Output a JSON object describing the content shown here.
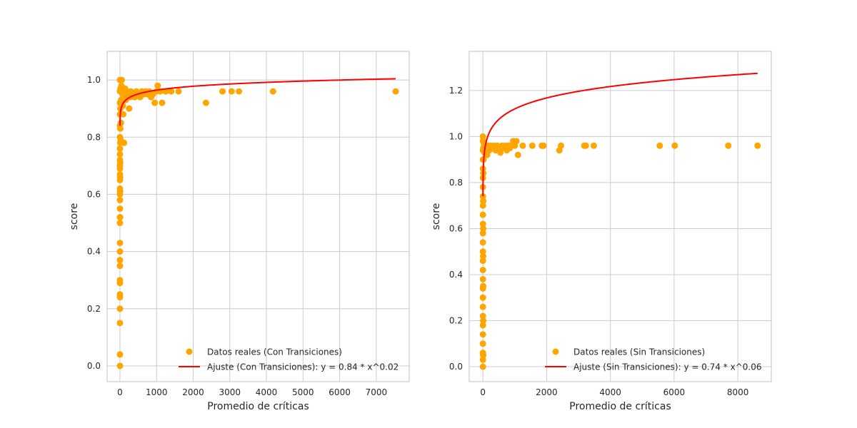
{
  "chart_data": [
    {
      "type": "scatter",
      "xlabel": "Promedio de críticas",
      "ylabel": "score",
      "xlim": [
        -350,
        7900
      ],
      "ylim": [
        -0.055,
        1.1
      ],
      "xticks": [
        0,
        1000,
        2000,
        3000,
        4000,
        5000,
        6000,
        7000
      ],
      "yticks": [
        0.0,
        0.2,
        0.4,
        0.6,
        0.8,
        1.0
      ],
      "ytick_labels": [
        "0.0",
        "0.2",
        "0.4",
        "0.6",
        "0.8",
        "1.0"
      ],
      "grid": true,
      "legend_position": "lower-right",
      "series": [
        {
          "name": "Datos reales (Con Transiciones)",
          "kind": "scatter",
          "color": "#FFA500",
          "points": [
            [
              0,
              0.0
            ],
            [
              0,
              0.04
            ],
            [
              0,
              0.15
            ],
            [
              0,
              0.2
            ],
            [
              0,
              0.24
            ],
            [
              0,
              0.25
            ],
            [
              0,
              0.29
            ],
            [
              0,
              0.3
            ],
            [
              0,
              0.35
            ],
            [
              0,
              0.37
            ],
            [
              0,
              0.4
            ],
            [
              0,
              0.43
            ],
            [
              0,
              0.5
            ],
            [
              0,
              0.52
            ],
            [
              0,
              0.55
            ],
            [
              0,
              0.58
            ],
            [
              0,
              0.6
            ],
            [
              0,
              0.62
            ],
            [
              0,
              0.65
            ],
            [
              0,
              0.67
            ],
            [
              0,
              0.69
            ],
            [
              0,
              0.7
            ],
            [
              0,
              0.72
            ],
            [
              0,
              0.74
            ],
            [
              0,
              0.76
            ],
            [
              0,
              0.8
            ],
            [
              0,
              0.84
            ],
            [
              0,
              0.88
            ],
            [
              0,
              0.92
            ],
            [
              0,
              0.96
            ],
            [
              0,
              1.0
            ],
            [
              6,
              0.52
            ],
            [
              6,
              0.61
            ],
            [
              6,
              0.66
            ],
            [
              8,
              0.71
            ],
            [
              8,
              0.78
            ],
            [
              10,
              0.83
            ],
            [
              12,
              0.9
            ],
            [
              15,
              0.97
            ],
            [
              20,
              0.79
            ],
            [
              25,
              0.85
            ],
            [
              30,
              0.93
            ],
            [
              40,
              0.98
            ],
            [
              50,
              1.0
            ],
            [
              60,
              0.93
            ],
            [
              70,
              0.95
            ],
            [
              80,
              0.91
            ],
            [
              90,
              0.88
            ],
            [
              100,
              0.96
            ],
            [
              110,
              0.78
            ],
            [
              120,
              0.94
            ],
            [
              140,
              0.97
            ],
            [
              160,
              0.93
            ],
            [
              180,
              0.95
            ],
            [
              200,
              0.96
            ],
            [
              220,
              0.95
            ],
            [
              250,
              0.9
            ],
            [
              280,
              0.94
            ],
            [
              300,
              0.96
            ],
            [
              350,
              0.95
            ],
            [
              400,
              0.94
            ],
            [
              450,
              0.96
            ],
            [
              500,
              0.95
            ],
            [
              550,
              0.94
            ],
            [
              600,
              0.96
            ],
            [
              650,
              0.95
            ],
            [
              700,
              0.96
            ],
            [
              750,
              0.95
            ],
            [
              800,
              0.96
            ],
            [
              850,
              0.94
            ],
            [
              900,
              0.95
            ],
            [
              950,
              0.92
            ],
            [
              1000,
              0.96
            ],
            [
              1030,
              0.98
            ],
            [
              1100,
              0.96
            ],
            [
              1150,
              0.92
            ],
            [
              1250,
              0.96
            ],
            [
              1400,
              0.96
            ],
            [
              1600,
              0.96
            ],
            [
              2350,
              0.92
            ],
            [
              2800,
              0.96
            ],
            [
              3050,
              0.96
            ],
            [
              3250,
              0.96
            ],
            [
              4180,
              0.96
            ],
            [
              7530,
              0.96
            ]
          ]
        },
        {
          "name": "Ajuste (Con Transiciones): y = 0.84 * x^0.02",
          "kind": "line",
          "color": "#FF0000",
          "a": 0.84,
          "b": 0.02,
          "x_range": [
            1,
            7530
          ]
        }
      ]
    },
    {
      "type": "scatter",
      "xlabel": "Promedio de críticas",
      "ylabel": "score",
      "xlim": [
        -430,
        9050
      ],
      "ylim": [
        -0.065,
        1.37
      ],
      "xticks": [
        0,
        2000,
        4000,
        6000,
        8000
      ],
      "yticks": [
        0.0,
        0.2,
        0.4,
        0.6,
        0.8,
        1.0,
        1.2
      ],
      "ytick_labels": [
        "0.0",
        "0.2",
        "0.4",
        "0.6",
        "0.8",
        "1.0",
        "1.2"
      ],
      "grid": true,
      "legend_position": "lower-right",
      "series": [
        {
          "name": "Datos reales (Sin Transiciones)",
          "kind": "scatter",
          "color": "#FFA500",
          "points": [
            [
              0,
              0.0
            ],
            [
              0,
              0.03
            ],
            [
              0,
              0.06
            ],
            [
              0,
              0.1
            ],
            [
              0,
              0.14
            ],
            [
              0,
              0.18
            ],
            [
              0,
              0.22
            ],
            [
              0,
              0.26
            ],
            [
              0,
              0.3
            ],
            [
              0,
              0.34
            ],
            [
              0,
              0.38
            ],
            [
              0,
              0.42
            ],
            [
              0,
              0.46
            ],
            [
              0,
              0.5
            ],
            [
              0,
              0.54
            ],
            [
              0,
              0.58
            ],
            [
              0,
              0.62
            ],
            [
              0,
              0.66
            ],
            [
              0,
              0.7
            ],
            [
              0,
              0.74
            ],
            [
              0,
              0.78
            ],
            [
              0,
              0.82
            ],
            [
              0,
              0.86
            ],
            [
              0,
              0.9
            ],
            [
              0,
              0.94
            ],
            [
              0,
              0.98
            ],
            [
              0,
              1.0
            ],
            [
              8,
              0.05
            ],
            [
              8,
              0.2
            ],
            [
              8,
              0.35
            ],
            [
              8,
              0.48
            ],
            [
              10,
              0.6
            ],
            [
              10,
              0.72
            ],
            [
              12,
              0.84
            ],
            [
              15,
              0.95
            ],
            [
              20,
              0.9
            ],
            [
              30,
              0.97
            ],
            [
              50,
              0.93
            ],
            [
              70,
              0.96
            ],
            [
              100,
              0.95
            ],
            [
              130,
              0.92
            ],
            [
              160,
              0.96
            ],
            [
              200,
              0.94
            ],
            [
              250,
              0.96
            ],
            [
              300,
              0.95
            ],
            [
              350,
              0.96
            ],
            [
              400,
              0.94
            ],
            [
              450,
              0.96
            ],
            [
              500,
              0.95
            ],
            [
              550,
              0.93
            ],
            [
              600,
              0.96
            ],
            [
              650,
              0.95
            ],
            [
              700,
              0.96
            ],
            [
              750,
              0.94
            ],
            [
              800,
              0.96
            ],
            [
              850,
              0.95
            ],
            [
              900,
              0.96
            ],
            [
              950,
              0.98
            ],
            [
              1000,
              0.96
            ],
            [
              1050,
              0.98
            ],
            [
              1100,
              0.92
            ],
            [
              1250,
              0.96
            ],
            [
              1550,
              0.96
            ],
            [
              1850,
              0.96
            ],
            [
              1900,
              0.96
            ],
            [
              2400,
              0.94
            ],
            [
              2450,
              0.96
            ],
            [
              3180,
              0.96
            ],
            [
              3230,
              0.96
            ],
            [
              3480,
              0.96
            ],
            [
              5550,
              0.96
            ],
            [
              6020,
              0.96
            ],
            [
              7700,
              0.96
            ],
            [
              8620,
              0.96
            ]
          ]
        },
        {
          "name": "Ajuste (Sin Transiciones): y = 0.74 * x^0.06",
          "kind": "line",
          "color": "#FF0000",
          "a": 0.74,
          "b": 0.06,
          "x_range": [
            1,
            8620
          ]
        }
      ]
    }
  ]
}
